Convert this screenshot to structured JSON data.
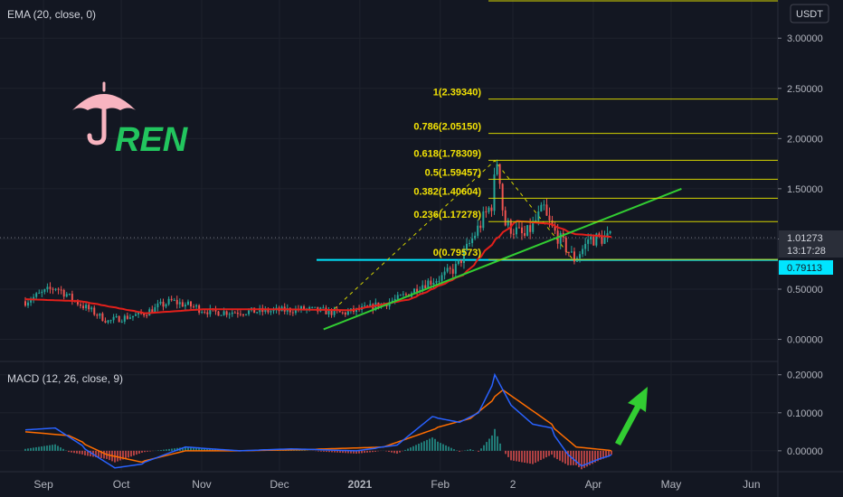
{
  "indicators": {
    "ema_label": "EMA (20, close, 0)",
    "macd_label": "MACD (12, 26, close, 9)"
  },
  "currency": "USDT",
  "watermark": {
    "text": "REN",
    "icon": "umbrella-icon",
    "icon_color": "#f8b4c0",
    "text_color": "#22c55e"
  },
  "price_badges": {
    "current": "1.01273",
    "countdown": "13:17:28",
    "support": "0.79113"
  },
  "colors": {
    "background": "#131722",
    "up": "#26a69a",
    "down": "#ef5350",
    "ema": "#e3201b",
    "fib": "#d4d400",
    "support": "#00e5ff",
    "trend": "#32cd32",
    "macd": "#2962ff",
    "signal": "#ff6d00",
    "fib_label": "#f2e205"
  },
  "chart_data": [
    {
      "type": "candlestick",
      "title": "EMA (20, close, 0)",
      "y_axis_ticks": [
        "3.00000",
        "2.50000",
        "2.00000",
        "1.50000",
        "1.00000",
        "0.50000",
        "0.00000"
      ],
      "x_axis_ticks": [
        "Sep",
        "Oct",
        "Nov",
        "Dec",
        "2021",
        "Feb",
        "2",
        "Apr",
        "May",
        "Jun"
      ],
      "ylim": [
        -0.22,
        3.38
      ],
      "x_dates": [
        "2020-08-25",
        "2021-04-08"
      ],
      "price_path": [
        [
          "2020-08-25",
          0.38
        ],
        [
          "2020-09-05",
          0.52
        ],
        [
          "2020-09-12",
          0.4
        ],
        [
          "2020-09-25",
          0.18
        ],
        [
          "2020-10-08",
          0.25
        ],
        [
          "2020-10-20",
          0.38
        ],
        [
          "2020-11-05",
          0.27
        ],
        [
          "2020-11-25",
          0.28
        ],
        [
          "2020-12-10",
          0.3
        ],
        [
          "2020-12-25",
          0.26
        ],
        [
          "2021-01-05",
          0.32
        ],
        [
          "2021-01-15",
          0.4
        ],
        [
          "2021-01-25",
          0.55
        ],
        [
          "2021-02-01",
          0.62
        ],
        [
          "2021-02-08",
          0.75
        ],
        [
          "2021-02-15",
          1.1
        ],
        [
          "2021-02-20",
          1.35
        ],
        [
          "2021-02-22",
          1.78
        ],
        [
          "2021-02-26",
          1.15
        ],
        [
          "2021-03-05",
          1.02
        ],
        [
          "2021-03-12",
          1.3
        ],
        [
          "2021-03-16",
          1.1
        ],
        [
          "2021-03-24",
          0.8
        ],
        [
          "2021-03-30",
          1.0
        ],
        [
          "2021-04-08",
          1.01
        ]
      ],
      "ema_path": [
        [
          "2020-08-25",
          0.4
        ],
        [
          "2020-09-15",
          0.38
        ],
        [
          "2020-10-10",
          0.26
        ],
        [
          "2020-11-01",
          0.3
        ],
        [
          "2020-12-01",
          0.3
        ],
        [
          "2020-12-28",
          0.29
        ],
        [
          "2021-01-20",
          0.4
        ],
        [
          "2021-02-10",
          0.65
        ],
        [
          "2021-02-22",
          1.0
        ],
        [
          "2021-03-02",
          1.18
        ],
        [
          "2021-03-15",
          1.15
        ],
        [
          "2021-03-24",
          1.05
        ],
        [
          "2021-04-08",
          1.02
        ]
      ],
      "fibonacci": [
        {
          "level": "1",
          "price": 2.3934,
          "label": "1(2.39340)"
        },
        {
          "level": "0.786",
          "price": 2.0515,
          "label": "0.786(2.05150)"
        },
        {
          "level": "0.618",
          "price": 1.78309,
          "label": "0.618(1.78309)"
        },
        {
          "level": "0.5",
          "price": 1.59457,
          "label": "0.5(1.59457)"
        },
        {
          "level": "0.382",
          "price": 1.40604,
          "label": "0.382(1.40604)"
        },
        {
          "level": "0.236",
          "price": 1.17278,
          "label": "0.236(1.17278)"
        },
        {
          "level": "0",
          "price": 0.79573,
          "label": "0(0.79573)"
        }
      ],
      "support_line": 0.79113,
      "current_price": 1.01273,
      "trendline": [
        [
          "2020-12-18",
          0.1
        ],
        [
          "2021-05-05",
          1.5
        ]
      ]
    },
    {
      "type": "line",
      "title": "MACD (12, 26, close, 9)",
      "y_axis_ticks": [
        "0.20000",
        "0.10000",
        "0.00000"
      ],
      "ylim": [
        -0.055,
        0.235
      ],
      "series": [
        {
          "name": "MACD",
          "points": [
            [
              "2020-08-25",
              0.055
            ],
            [
              "2020-09-05",
              0.06
            ],
            [
              "2020-09-18",
              0.0
            ],
            [
              "2020-09-28",
              -0.045
            ],
            [
              "2020-10-08",
              -0.035
            ],
            [
              "2020-10-25",
              0.01
            ],
            [
              "2020-11-15",
              0.0
            ],
            [
              "2020-12-05",
              0.005
            ],
            [
              "2020-12-30",
              0.0
            ],
            [
              "2021-01-15",
              0.015
            ],
            [
              "2021-01-28",
              0.09
            ],
            [
              "2021-02-08",
              0.075
            ],
            [
              "2021-02-15",
              0.1
            ],
            [
              "2021-02-22",
              0.2
            ],
            [
              "2021-02-28",
              0.12
            ],
            [
              "2021-03-08",
              0.07
            ],
            [
              "2021-03-15",
              0.06
            ],
            [
              "2021-03-22",
              -0.01
            ],
            [
              "2021-03-27",
              -0.04
            ],
            [
              "2021-04-03",
              -0.02
            ],
            [
              "2021-04-08",
              -0.01
            ]
          ]
        },
        {
          "name": "Signal",
          "points": [
            [
              "2020-08-25",
              0.05
            ],
            [
              "2020-09-10",
              0.04
            ],
            [
              "2020-09-25",
              -0.01
            ],
            [
              "2020-10-08",
              -0.03
            ],
            [
              "2020-10-25",
              0.0
            ],
            [
              "2020-11-15",
              0.0
            ],
            [
              "2020-12-10",
              0.003
            ],
            [
              "2021-01-10",
              0.01
            ],
            [
              "2021-01-30",
              0.06
            ],
            [
              "2021-02-12",
              0.085
            ],
            [
              "2021-02-25",
              0.16
            ],
            [
              "2021-03-05",
              0.12
            ],
            [
              "2021-03-15",
              0.07
            ],
            [
              "2021-03-25",
              0.01
            ],
            [
              "2021-04-08",
              0.0
            ]
          ]
        }
      ]
    }
  ]
}
